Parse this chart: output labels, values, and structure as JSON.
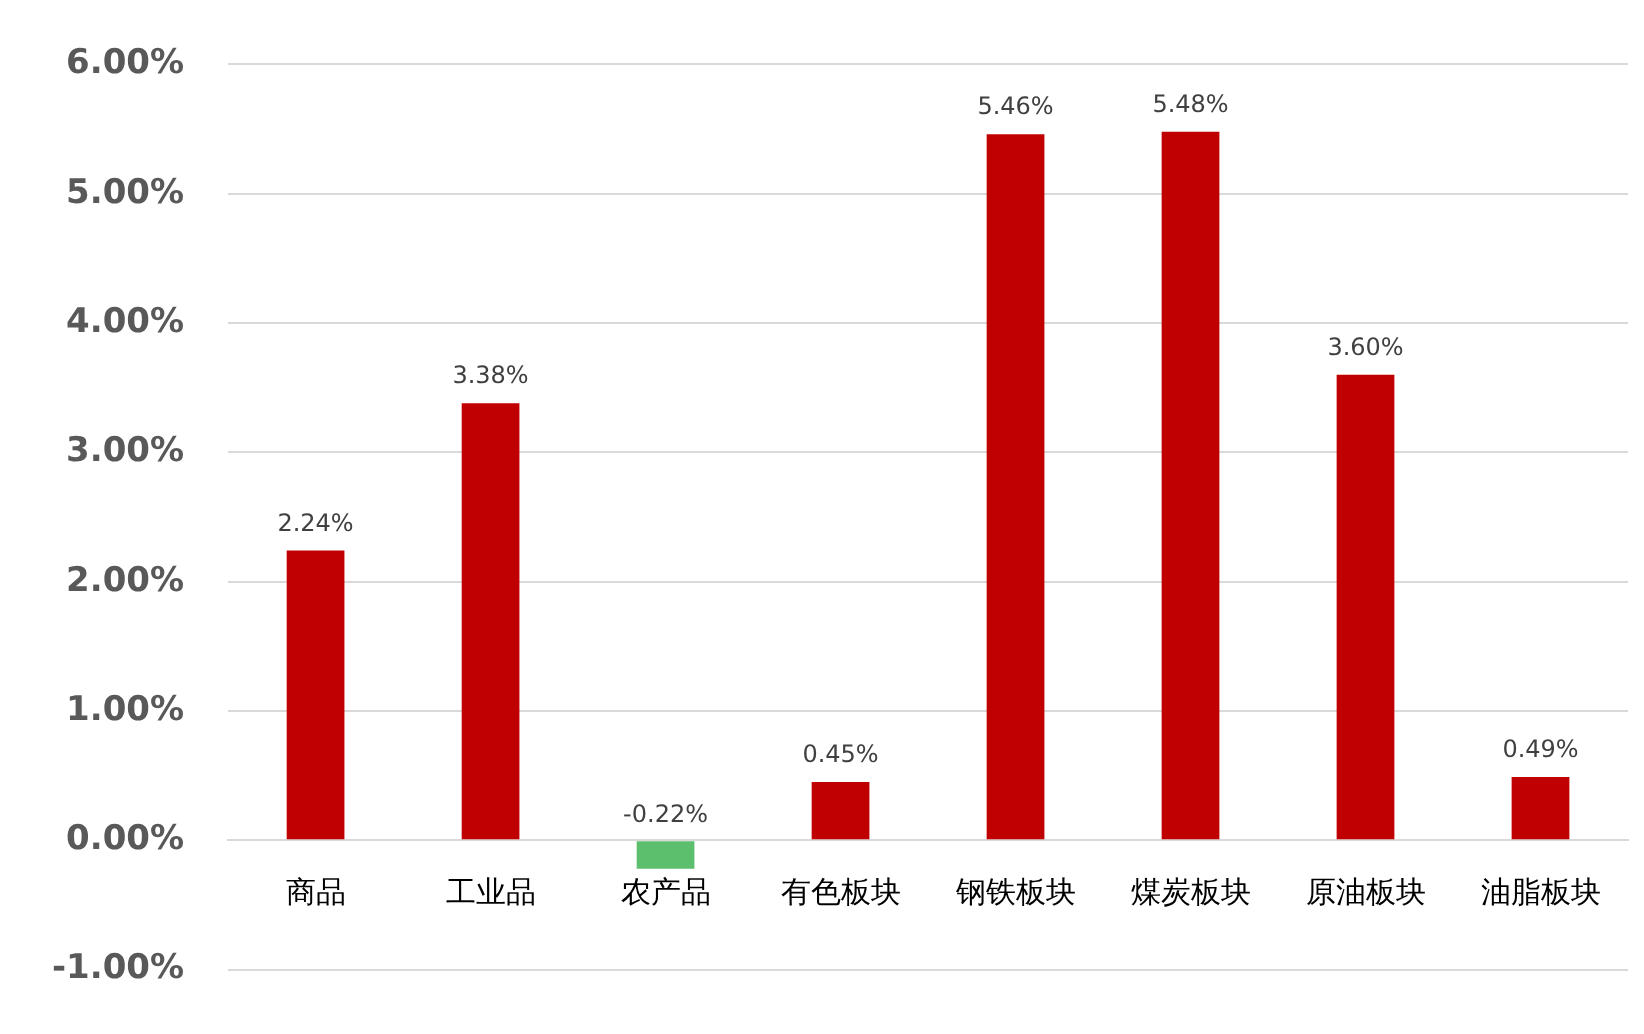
{
  "chart_data": {
    "type": "bar",
    "categories": [
      "商品",
      "工业品",
      "农产品",
      "有色板块",
      "钢铁板块",
      "煤炭板块",
      "原油板块",
      "油脂板块"
    ],
    "values": [
      2.24,
      3.38,
      -0.22,
      0.45,
      5.46,
      5.48,
      3.6,
      0.49
    ],
    "colors": [
      "#c00000",
      "#c00000",
      "#5cbf6e",
      "#c00000",
      "#c00000",
      "#c00000",
      "#c00000",
      "#c00000"
    ],
    "value_labels": [
      "2.24%",
      "3.38%",
      "-0.22%",
      "0.45%",
      "5.46%",
      "5.48%",
      "3.60%",
      "0.49%"
    ],
    "ylim": [
      -1,
      6
    ],
    "yticks": [
      {
        "value": -1,
        "label": "-1.00%"
      },
      {
        "value": 0,
        "label": "0.00%"
      },
      {
        "value": 1,
        "label": "1.00%"
      },
      {
        "value": 2,
        "label": "2.00%"
      },
      {
        "value": 3,
        "label": "3.00%"
      },
      {
        "value": 4,
        "label": "4.00%"
      },
      {
        "value": 5,
        "label": "5.00%"
      },
      {
        "value": 6,
        "label": "6.00%"
      }
    ],
    "grid": "y",
    "legend": false
  }
}
